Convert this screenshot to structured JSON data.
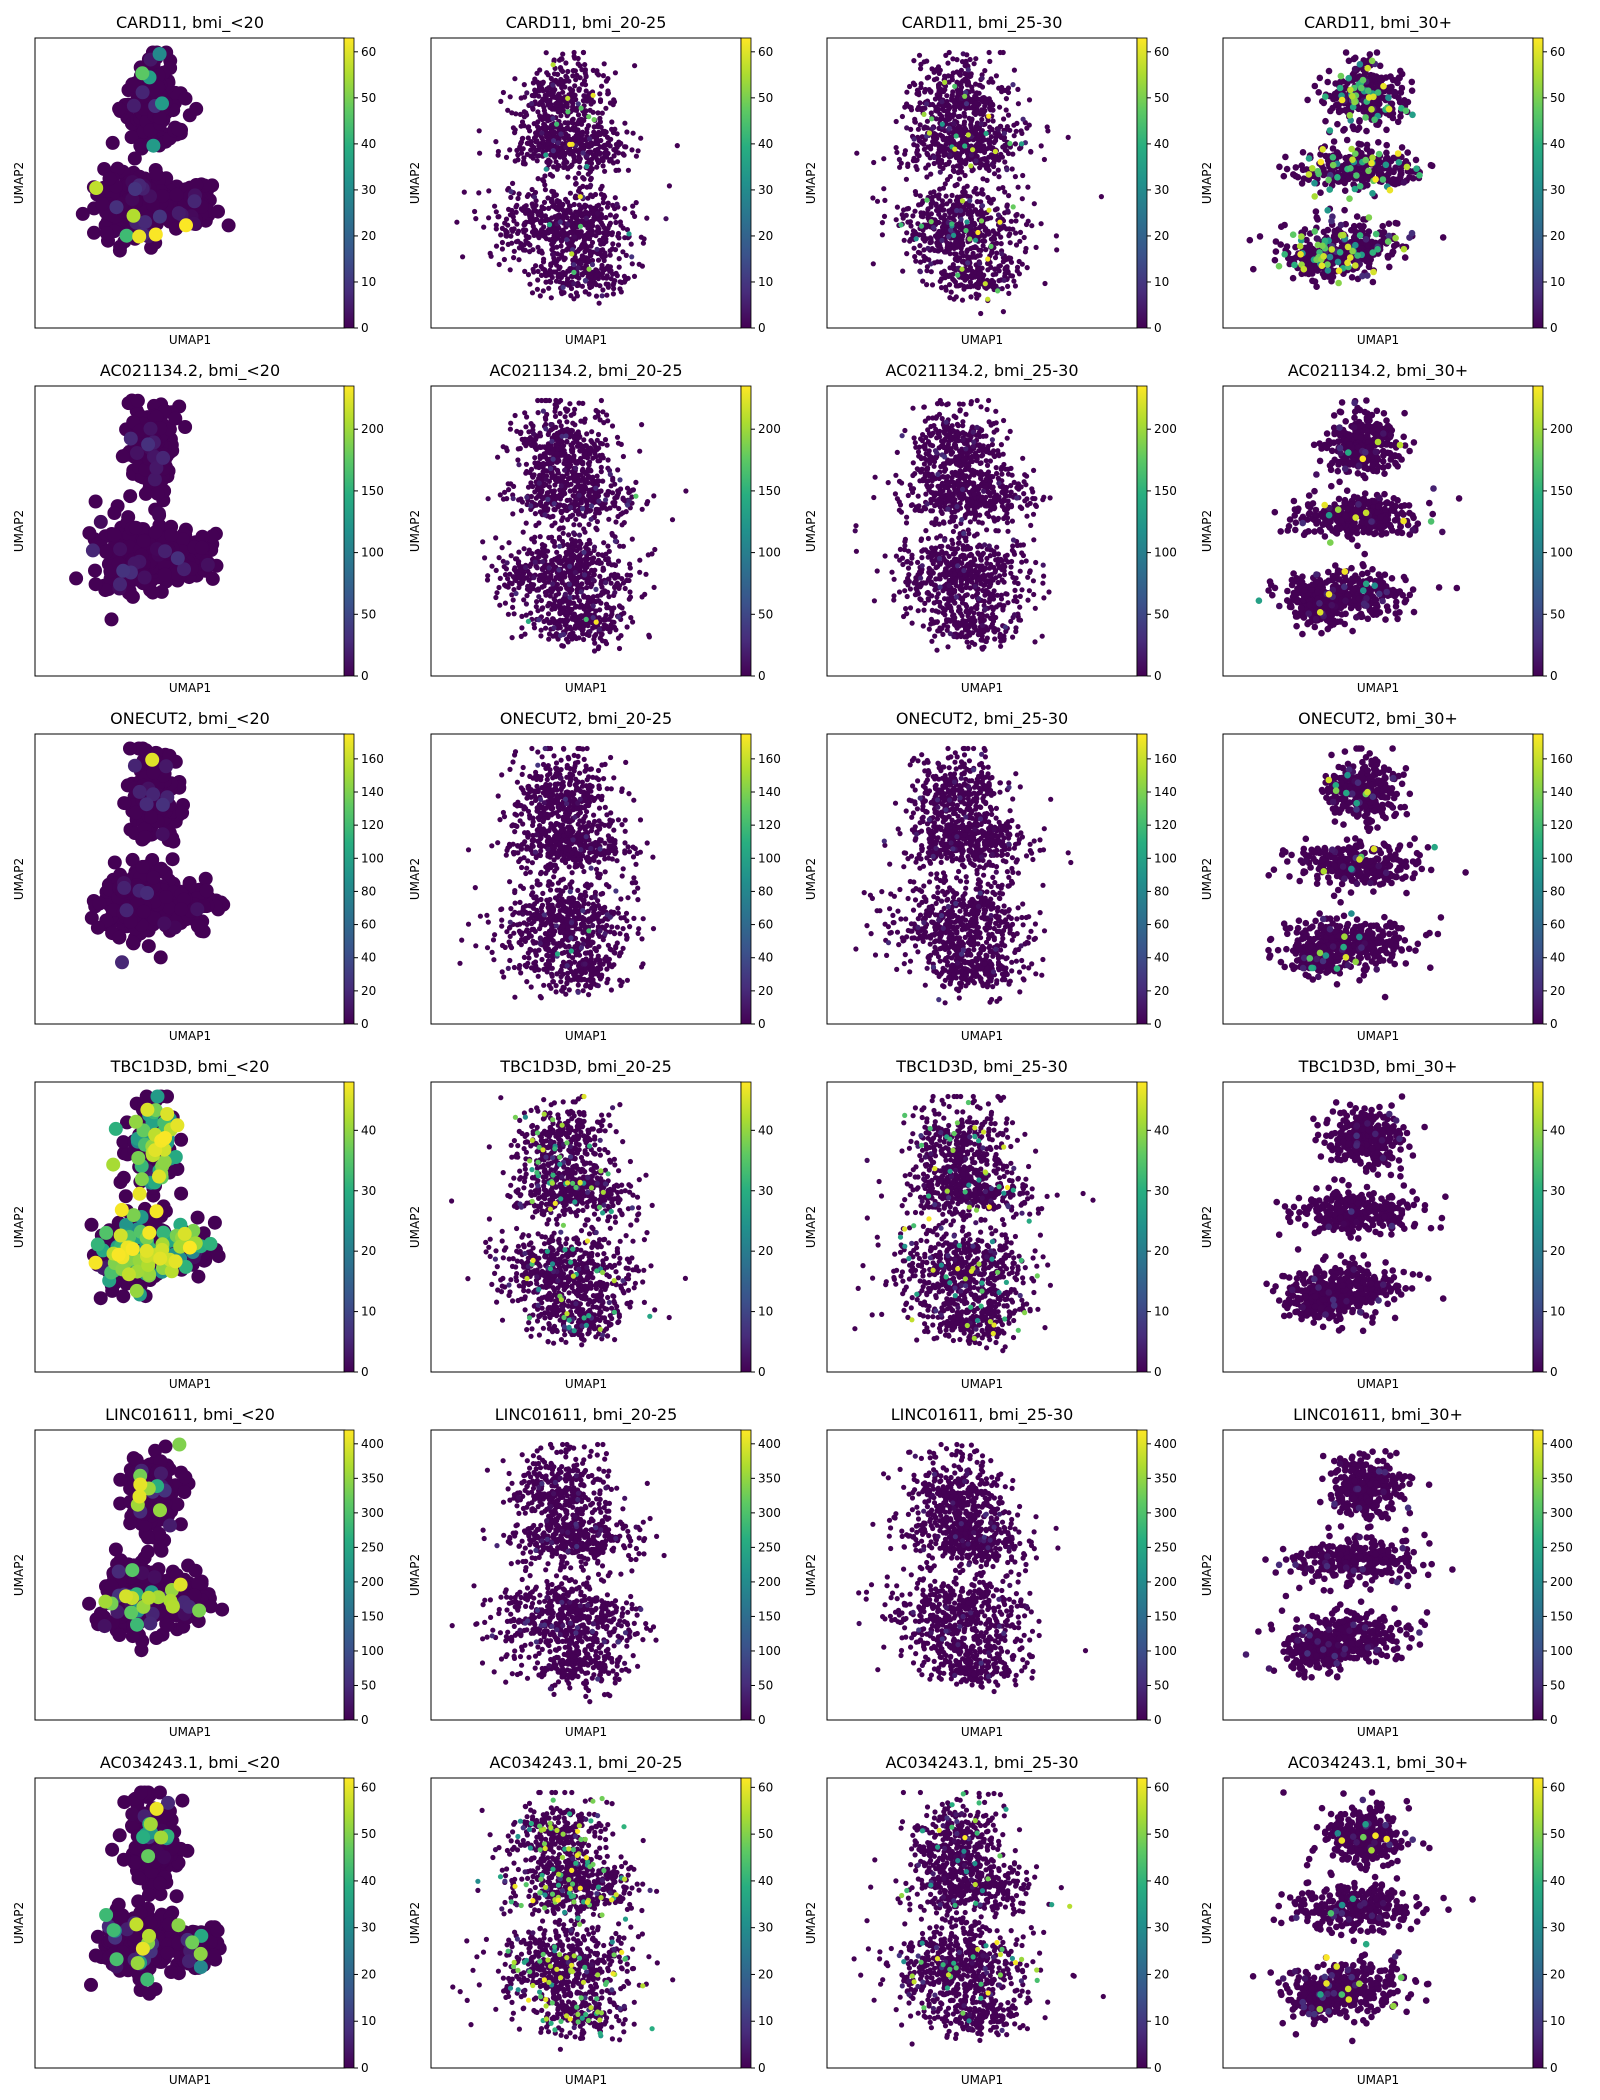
{
  "figure": {
    "xlabel": "UMAP1",
    "ylabel": "UMAP2",
    "colormap": "viridis",
    "viridis_stops": [
      "#440154",
      "#472d7b",
      "#3b528b",
      "#2c728e",
      "#21918c",
      "#28ae80",
      "#5ec962",
      "#addc30",
      "#fde725"
    ]
  },
  "chart_data": [
    {
      "type": "scatter",
      "gene": "CARD11",
      "group": "bmi_<20",
      "title": "CARD11, bmi_<20",
      "xlabel": "UMAP1",
      "ylabel": "UMAP2",
      "color_range": [
        0,
        63
      ],
      "colorbar_ticks": [
        0,
        10,
        20,
        30,
        40,
        50,
        60
      ],
      "cell_count": "small",
      "highlight": "few cells high, ~45-63"
    },
    {
      "type": "scatter",
      "gene": "CARD11",
      "group": "bmi_20-25",
      "title": "CARD11, bmi_20-25",
      "xlabel": "UMAP1",
      "ylabel": "UMAP2",
      "color_range": [
        0,
        63
      ],
      "colorbar_ticks": [
        0,
        10,
        20,
        30,
        40,
        50,
        60
      ],
      "cell_count": "large",
      "highlight": "sparse low-moderate expression"
    },
    {
      "type": "scatter",
      "gene": "CARD11",
      "group": "bmi_25-30",
      "title": "CARD11, bmi_25-30",
      "xlabel": "UMAP1",
      "ylabel": "UMAP2",
      "color_range": [
        0,
        63
      ],
      "colorbar_ticks": [
        0,
        10,
        20,
        30,
        40,
        50,
        60
      ],
      "cell_count": "large",
      "highlight": "sparse expression in lower cluster"
    },
    {
      "type": "scatter",
      "gene": "CARD11",
      "group": "bmi_30+",
      "title": "CARD11, bmi_30+",
      "xlabel": "UMAP1",
      "ylabel": "UMAP2",
      "color_range": [
        0,
        63
      ],
      "colorbar_ticks": [
        0,
        10,
        20,
        30,
        40,
        50,
        60
      ],
      "cell_count": "medium",
      "highlight": "many cells high (yellow/green)"
    },
    {
      "type": "scatter",
      "gene": "AC021134.2",
      "group": "bmi_<20",
      "title": "AC021134.2, bmi_<20",
      "xlabel": "UMAP1",
      "ylabel": "UMAP2",
      "color_range": [
        0,
        235
      ],
      "colorbar_ticks": [
        0,
        50,
        100,
        150,
        200
      ],
      "cell_count": "small",
      "highlight": "none"
    },
    {
      "type": "scatter",
      "gene": "AC021134.2",
      "group": "bmi_20-25",
      "title": "AC021134.2, bmi_20-25",
      "xlabel": "UMAP1",
      "ylabel": "UMAP2",
      "color_range": [
        0,
        235
      ],
      "colorbar_ticks": [
        0,
        50,
        100,
        150,
        200
      ],
      "cell_count": "large",
      "highlight": "one high cell"
    },
    {
      "type": "scatter",
      "gene": "AC021134.2",
      "group": "bmi_25-30",
      "title": "AC021134.2, bmi_25-30",
      "xlabel": "UMAP1",
      "ylabel": "UMAP2",
      "color_range": [
        0,
        235
      ],
      "colorbar_ticks": [
        0,
        50,
        100,
        150,
        200
      ],
      "cell_count": "large",
      "highlight": "none"
    },
    {
      "type": "scatter",
      "gene": "AC021134.2",
      "group": "bmi_30+",
      "title": "AC021134.2, bmi_30+",
      "xlabel": "UMAP1",
      "ylabel": "UMAP2",
      "color_range": [
        0,
        235
      ],
      "colorbar_ticks": [
        0,
        50,
        100,
        150,
        200
      ],
      "cell_count": "medium",
      "highlight": "few low-moderate cells"
    },
    {
      "type": "scatter",
      "gene": "ONECUT2",
      "group": "bmi_<20",
      "title": "ONECUT2, bmi_<20",
      "xlabel": "UMAP1",
      "ylabel": "UMAP2",
      "color_range": [
        0,
        175
      ],
      "colorbar_ticks": [
        0,
        20,
        40,
        60,
        80,
        100,
        120,
        140,
        160
      ],
      "cell_count": "small",
      "highlight": "one high cell"
    },
    {
      "type": "scatter",
      "gene": "ONECUT2",
      "group": "bmi_20-25",
      "title": "ONECUT2, bmi_20-25",
      "xlabel": "UMAP1",
      "ylabel": "UMAP2",
      "color_range": [
        0,
        175
      ],
      "colorbar_ticks": [
        0,
        20,
        40,
        60,
        80,
        100,
        120,
        140,
        160
      ],
      "cell_count": "large",
      "highlight": "one high cell"
    },
    {
      "type": "scatter",
      "gene": "ONECUT2",
      "group": "bmi_25-30",
      "title": "ONECUT2, bmi_25-30",
      "xlabel": "UMAP1",
      "ylabel": "UMAP2",
      "color_range": [
        0,
        175
      ],
      "colorbar_ticks": [
        0,
        20,
        40,
        60,
        80,
        100,
        120,
        140,
        160
      ],
      "cell_count": "large",
      "highlight": "none"
    },
    {
      "type": "scatter",
      "gene": "ONECUT2",
      "group": "bmi_30+",
      "title": "ONECUT2, bmi_30+",
      "xlabel": "UMAP1",
      "ylabel": "UMAP2",
      "color_range": [
        0,
        175
      ],
      "colorbar_ticks": [
        0,
        20,
        40,
        60,
        80,
        100,
        120,
        140,
        160
      ],
      "cell_count": "medium",
      "highlight": "few moderate cells"
    },
    {
      "type": "scatter",
      "gene": "TBC1D3D",
      "group": "bmi_<20",
      "title": "TBC1D3D, bmi_<20",
      "xlabel": "UMAP1",
      "ylabel": "UMAP2",
      "color_range": [
        0,
        48
      ],
      "colorbar_ticks": [
        0,
        10,
        20,
        30,
        40
      ],
      "cell_count": "small",
      "highlight": "many cells high"
    },
    {
      "type": "scatter",
      "gene": "TBC1D3D",
      "group": "bmi_20-25",
      "title": "TBC1D3D, bmi_20-25",
      "xlabel": "UMAP1",
      "ylabel": "UMAP2",
      "color_range": [
        0,
        48
      ],
      "colorbar_ticks": [
        0,
        10,
        20,
        30,
        40
      ],
      "cell_count": "large",
      "highlight": "scattered high cells"
    },
    {
      "type": "scatter",
      "gene": "TBC1D3D",
      "group": "bmi_25-30",
      "title": "TBC1D3D, bmi_25-30",
      "xlabel": "UMAP1",
      "ylabel": "UMAP2",
      "color_range": [
        0,
        48
      ],
      "colorbar_ticks": [
        0,
        10,
        20,
        30,
        40
      ],
      "cell_count": "large",
      "highlight": "scattered high cells"
    },
    {
      "type": "scatter",
      "gene": "TBC1D3D",
      "group": "bmi_30+",
      "title": "TBC1D3D, bmi_30+",
      "xlabel": "UMAP1",
      "ylabel": "UMAP2",
      "color_range": [
        0,
        48
      ],
      "colorbar_ticks": [
        0,
        10,
        20,
        30,
        40
      ],
      "cell_count": "medium",
      "highlight": "none"
    },
    {
      "type": "scatter",
      "gene": "LINC01611",
      "group": "bmi_<20",
      "title": "LINC01611, bmi_<20",
      "xlabel": "UMAP1",
      "ylabel": "UMAP2",
      "color_range": [
        0,
        420
      ],
      "colorbar_ticks": [
        0,
        50,
        100,
        150,
        200,
        250,
        300,
        350,
        400
      ],
      "cell_count": "small",
      "highlight": "few high cells"
    },
    {
      "type": "scatter",
      "gene": "LINC01611",
      "group": "bmi_20-25",
      "title": "LINC01611, bmi_20-25",
      "xlabel": "UMAP1",
      "ylabel": "UMAP2",
      "color_range": [
        0,
        420
      ],
      "colorbar_ticks": [
        0,
        50,
        100,
        150,
        200,
        250,
        300,
        350,
        400
      ],
      "cell_count": "large",
      "highlight": "none"
    },
    {
      "type": "scatter",
      "gene": "LINC01611",
      "group": "bmi_25-30",
      "title": "LINC01611, bmi_25-30",
      "xlabel": "UMAP1",
      "ylabel": "UMAP2",
      "color_range": [
        0,
        420
      ],
      "colorbar_ticks": [
        0,
        50,
        100,
        150,
        200,
        250,
        300,
        350,
        400
      ],
      "cell_count": "large",
      "highlight": "none"
    },
    {
      "type": "scatter",
      "gene": "LINC01611",
      "group": "bmi_30+",
      "title": "LINC01611, bmi_30+",
      "xlabel": "UMAP1",
      "ylabel": "UMAP2",
      "color_range": [
        0,
        420
      ],
      "colorbar_ticks": [
        0,
        50,
        100,
        150,
        200,
        250,
        300,
        350,
        400
      ],
      "cell_count": "medium",
      "highlight": "none"
    },
    {
      "type": "scatter",
      "gene": "AC034243.1",
      "group": "bmi_<20",
      "title": "AC034243.1, bmi_<20",
      "xlabel": "UMAP1",
      "ylabel": "UMAP2",
      "color_range": [
        0,
        62
      ],
      "colorbar_ticks": [
        0,
        10,
        20,
        30,
        40,
        50,
        60
      ],
      "cell_count": "small",
      "highlight": "few moderate-high cells"
    },
    {
      "type": "scatter",
      "gene": "AC034243.1",
      "group": "bmi_20-25",
      "title": "AC034243.1, bmi_20-25",
      "xlabel": "UMAP1",
      "ylabel": "UMAP2",
      "color_range": [
        0,
        62
      ],
      "colorbar_ticks": [
        0,
        10,
        20,
        30,
        40,
        50,
        60
      ],
      "cell_count": "large",
      "highlight": "many high cells at bottom"
    },
    {
      "type": "scatter",
      "gene": "AC034243.1",
      "group": "bmi_25-30",
      "title": "AC034243.1, bmi_25-30",
      "xlabel": "UMAP1",
      "ylabel": "UMAP2",
      "color_range": [
        0,
        62
      ],
      "colorbar_ticks": [
        0,
        10,
        20,
        30,
        40,
        50,
        60
      ],
      "cell_count": "large",
      "highlight": "sparse high cells"
    },
    {
      "type": "scatter",
      "gene": "AC034243.1",
      "group": "bmi_30+",
      "title": "AC034243.1, bmi_30+",
      "xlabel": "UMAP1",
      "ylabel": "UMAP2",
      "color_range": [
        0,
        62
      ],
      "colorbar_ticks": [
        0,
        10,
        20,
        30,
        40,
        50,
        60
      ],
      "cell_count": "medium",
      "highlight": "few moderate cells"
    }
  ]
}
